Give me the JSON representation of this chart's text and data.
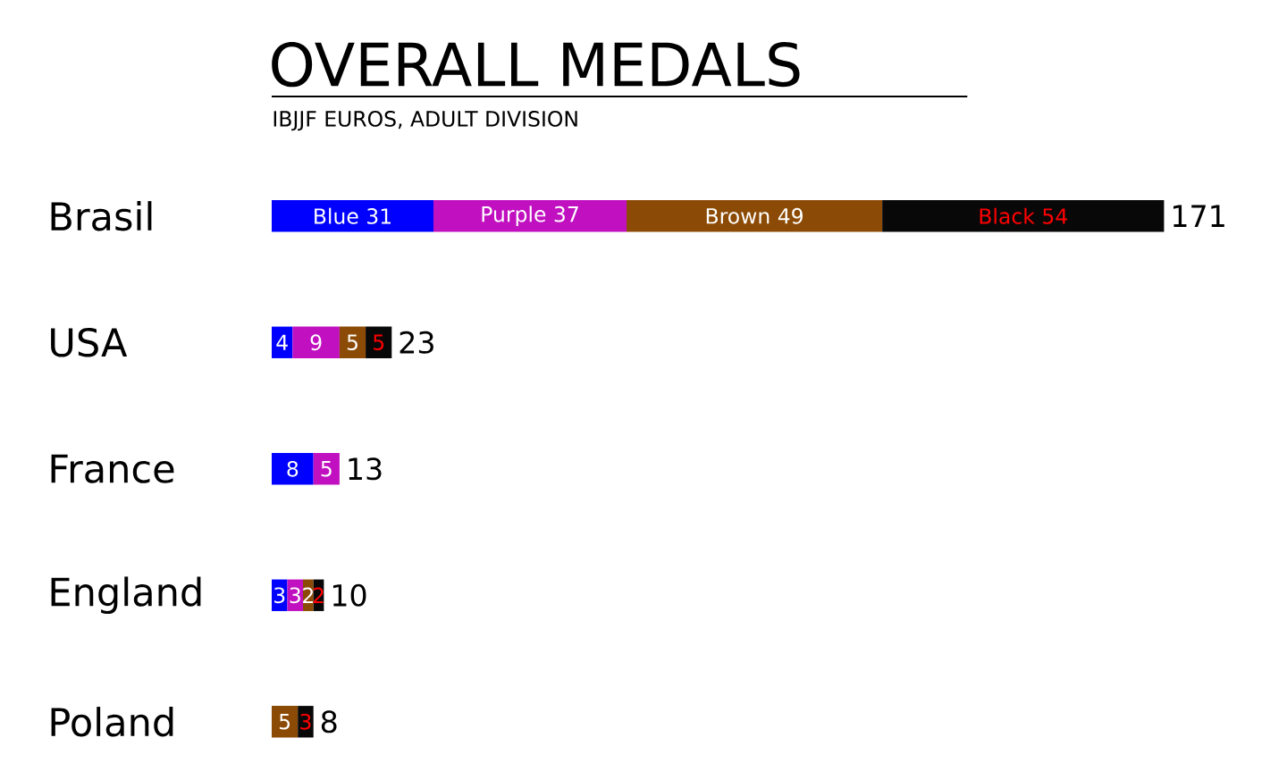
{
  "chart_data": {
    "type": "bar",
    "orientation": "horizontal",
    "stacked": true,
    "title": "OVERALL MEDALS",
    "subtitle": "IBJJF EUROS, ADULT DIVISION",
    "categories": [
      "Brasil",
      "USA",
      "France",
      "England",
      "Poland"
    ],
    "series": [
      {
        "color": "#0000ff",
        "values": [
          31,
          4,
          8,
          3,
          null
        ],
        "value_labels": [
          "Blue 31",
          "4",
          "8",
          "3",
          null
        ]
      },
      {
        "color": "#c010c0",
        "values": [
          37,
          9,
          5,
          3,
          null
        ],
        "value_labels": [
          "Purple 37",
          "9",
          "5",
          "3",
          null
        ]
      },
      {
        "color": "#8b4a05",
        "values": [
          49,
          5,
          null,
          2,
          5
        ],
        "value_labels": [
          "Brown 49",
          "5",
          null,
          "2",
          "5"
        ]
      },
      {
        "color": "#080808",
        "values": [
          54,
          5,
          null,
          2,
          3
        ],
        "value_labels": [
          "Black 54",
          "5",
          null,
          "2",
          "3"
        ]
      }
    ],
    "totals": [
      "171",
      "23",
      "13",
      "10",
      "8"
    ]
  }
}
